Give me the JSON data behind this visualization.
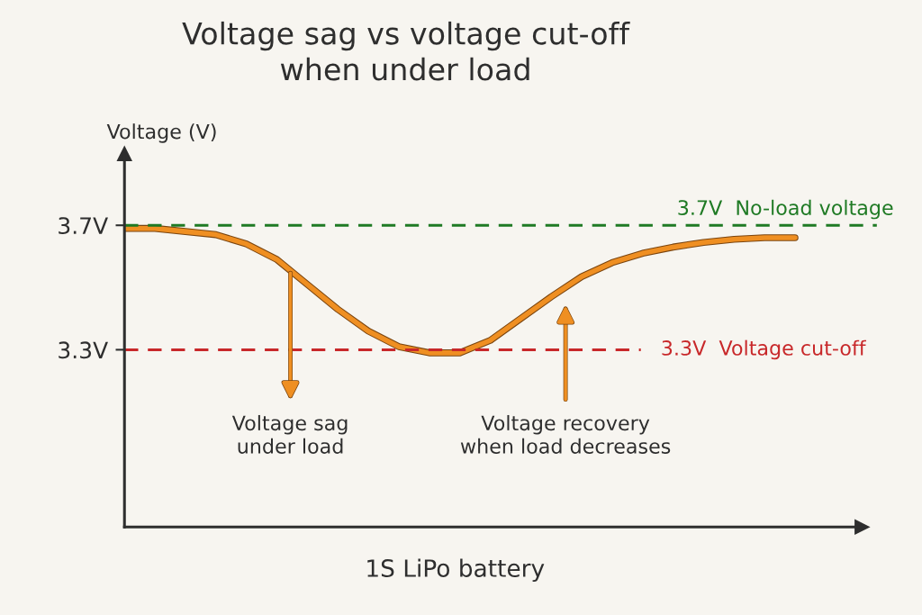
{
  "chart_data": {
    "type": "line",
    "title": "Voltage sag vs voltage cut-off\nwhen under load",
    "xlabel": "1S LiPo battery",
    "ylabel": "Voltage (V)",
    "categories": [
      null,
      null,
      null,
      null,
      null,
      null,
      null,
      null,
      null,
      null,
      null,
      null,
      null,
      null,
      null,
      null,
      null,
      null,
      null,
      null,
      null,
      null,
      null
    ],
    "series": [
      {
        "color": "#ef8f22",
        "values": [
          3.69,
          3.69,
          3.68,
          3.67,
          3.64,
          3.59,
          3.51,
          3.43,
          3.36,
          3.31,
          3.29,
          3.29,
          3.33,
          3.4,
          3.47,
          3.535,
          3.58,
          3.61,
          3.63,
          3.645,
          3.655,
          3.66,
          3.66
        ]
      }
    ],
    "ylim": [
      2.73,
      3.93
    ],
    "yticks": [
      {
        "value": 3.3,
        "label": "3.3V"
      },
      {
        "value": 3.7,
        "label": "3.7V"
      }
    ],
    "tick_labels": "y",
    "grid": false,
    "marker": "none",
    "line_style": "solid",
    "ref_lines": [
      {
        "axis": "y",
        "value": 3.7,
        "label": "3.7V  No-load voltage",
        "color": "#1f7a24",
        "line_style": "dashed"
      },
      {
        "axis": "y",
        "value": 3.3,
        "label": "3.3V  Voltage cut-off",
        "color": "#c8282a",
        "line_style": "dashed"
      }
    ],
    "annotations": [
      "Voltage sag\nunder load",
      "Voltage recovery\nwhen load decreases"
    ]
  }
}
